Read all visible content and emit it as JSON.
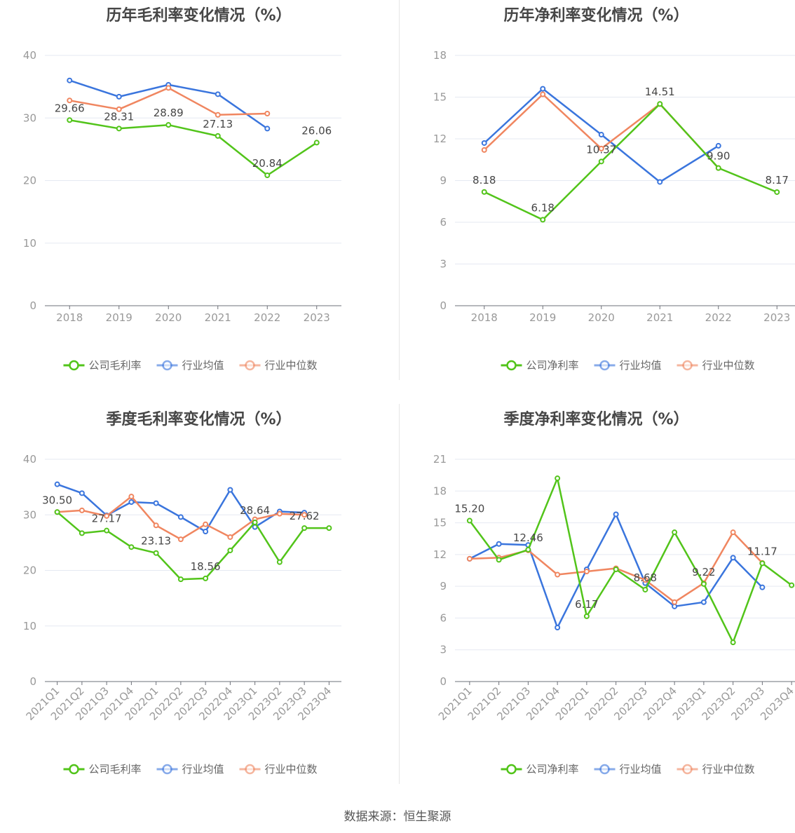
{
  "source_note": "数据来源：恒生聚源",
  "colors": {
    "company": "#52c41a",
    "industry_avg": "#3a75dd",
    "industry_median": "#f08660",
    "grid": "#e5e9f2",
    "axis": "#6e7079"
  },
  "chart_data": [
    {
      "type": "line",
      "title": "历年毛利率变化情况（%）",
      "categories": [
        "2018",
        "2019",
        "2020",
        "2021",
        "2022",
        "2023"
      ],
      "ylim": [
        0,
        40
      ],
      "yticks": [
        0,
        10,
        20,
        30,
        40
      ],
      "legend_position": "bottom",
      "series": [
        {
          "name": "公司毛利率",
          "color": "#52c41a",
          "values": [
            29.66,
            28.31,
            28.89,
            27.13,
            20.84,
            26.06
          ],
          "labels": [
            "29.66",
            "28.31",
            "28.89",
            "27.13",
            "20.84",
            "26.06"
          ]
        },
        {
          "name": "行业均值",
          "color": "#3a75dd",
          "values": [
            36.0,
            33.4,
            35.3,
            33.8,
            28.3,
            null
          ],
          "labels": []
        },
        {
          "name": "行业中位数",
          "color": "#f08660",
          "values": [
            32.8,
            31.4,
            34.8,
            30.5,
            30.7,
            null
          ],
          "labels": []
        }
      ]
    },
    {
      "type": "line",
      "title": "历年净利率变化情况（%）",
      "categories": [
        "2018",
        "2019",
        "2020",
        "2021",
        "2022",
        "2023"
      ],
      "ylim": [
        0,
        18
      ],
      "yticks": [
        0,
        3,
        6,
        9,
        12,
        15,
        18
      ],
      "legend_position": "bottom",
      "series": [
        {
          "name": "公司净利率",
          "color": "#52c41a",
          "values": [
            8.18,
            6.18,
            10.37,
            14.51,
            9.9,
            8.17
          ],
          "labels": [
            "8.18",
            "6.18",
            "10.37",
            "14.51",
            "9.90",
            "8.17"
          ]
        },
        {
          "name": "行业均值",
          "color": "#3a75dd",
          "values": [
            11.7,
            15.6,
            12.3,
            8.9,
            11.5,
            null
          ],
          "labels": []
        },
        {
          "name": "行业中位数",
          "color": "#f08660",
          "values": [
            11.2,
            15.2,
            11.3,
            14.5,
            9.9,
            null
          ],
          "labels": []
        }
      ]
    },
    {
      "type": "line",
      "title": "季度毛利率变化情况（%）",
      "categories": [
        "2021Q1",
        "2021Q2",
        "2021Q3",
        "2021Q4",
        "2022Q1",
        "2022Q2",
        "2022Q3",
        "2022Q4",
        "2023Q1",
        "2023Q2",
        "2023Q3",
        "2023Q4"
      ],
      "ylim": [
        0,
        40
      ],
      "yticks": [
        0,
        10,
        20,
        30,
        40
      ],
      "legend_position": "bottom",
      "series": [
        {
          "name": "公司毛利率",
          "color": "#52c41a",
          "values": [
            30.5,
            26.7,
            27.17,
            24.2,
            23.13,
            18.4,
            18.56,
            23.6,
            28.64,
            21.5,
            27.62,
            27.62
          ],
          "labels": [
            "30.50",
            "",
            "27.17",
            "",
            "23.13",
            "",
            "18.56",
            "",
            "28.64",
            "",
            "27.62",
            ""
          ]
        },
        {
          "name": "行业均值",
          "color": "#3a75dd",
          "values": [
            35.5,
            33.9,
            29.9,
            32.3,
            32.1,
            29.6,
            27.0,
            34.5,
            27.8,
            30.6,
            30.4,
            null
          ],
          "labels": []
        },
        {
          "name": "行业中位数",
          "color": "#f08660",
          "values": [
            30.5,
            30.8,
            29.8,
            33.3,
            28.1,
            25.6,
            28.3,
            26.0,
            29.2,
            30.2,
            30.0,
            null
          ],
          "labels": []
        }
      ]
    },
    {
      "type": "line",
      "title": "季度净利率变化情况（%）",
      "categories": [
        "2021Q1",
        "2021Q2",
        "2021Q3",
        "2021Q4",
        "2022Q1",
        "2022Q2",
        "2022Q3",
        "2022Q4",
        "2023Q1",
        "2023Q2",
        "2023Q3",
        "2023Q4"
      ],
      "ylim": [
        0,
        21
      ],
      "yticks": [
        0,
        3,
        6,
        9,
        12,
        15,
        18,
        21
      ],
      "legend_position": "bottom",
      "series": [
        {
          "name": "公司净利率",
          "color": "#52c41a",
          "values": [
            15.2,
            11.5,
            12.46,
            19.2,
            6.17,
            10.6,
            8.68,
            14.1,
            9.22,
            3.7,
            11.17,
            9.1
          ],
          "labels": [
            "15.20",
            "",
            "12.46",
            "",
            "6.17",
            "",
            "8.68",
            "",
            "9.22",
            "",
            "11.17",
            ""
          ]
        },
        {
          "name": "行业均值",
          "color": "#3a75dd",
          "values": [
            11.6,
            13.0,
            12.9,
            5.1,
            10.6,
            15.8,
            9.3,
            7.1,
            7.5,
            11.7,
            8.9,
            null
          ],
          "labels": []
        },
        {
          "name": "行业中位数",
          "color": "#f08660",
          "values": [
            11.6,
            11.7,
            12.4,
            10.1,
            10.4,
            10.7,
            9.6,
            7.5,
            9.3,
            14.1,
            11.2,
            null
          ],
          "labels": []
        }
      ]
    }
  ]
}
